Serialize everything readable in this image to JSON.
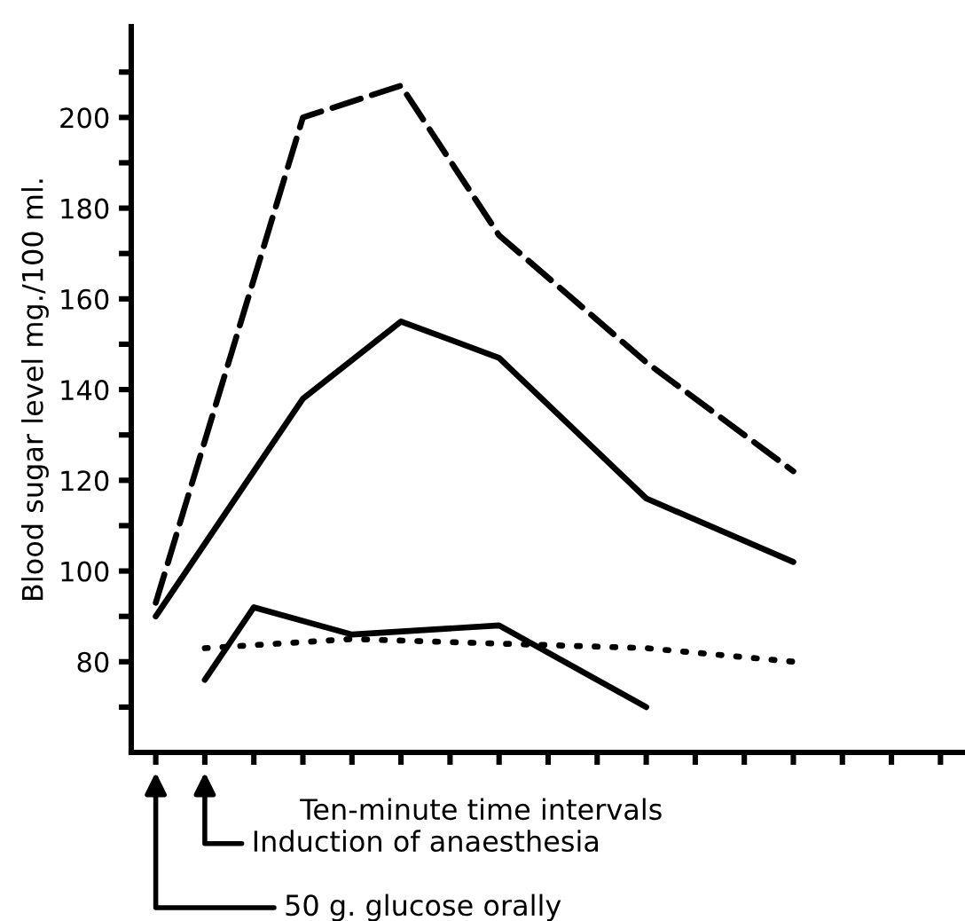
{
  "chart_data": {
    "type": "line",
    "xlabel": "Ten-minute time intervals",
    "ylabel": "Blood sugar level mg./100 ml.",
    "categories": [
      null,
      null,
      null,
      null,
      null,
      null,
      null,
      null,
      null,
      null,
      null,
      null,
      null,
      null,
      null,
      null,
      null
    ],
    "ylim": [
      60,
      220
    ],
    "yticks": [
      {
        "value": 70,
        "label": null
      },
      80,
      {
        "value": 90,
        "label": null
      },
      100,
      {
        "value": 110,
        "label": null
      },
      120,
      {
        "value": 130,
        "label": null
      },
      140,
      {
        "value": 150,
        "label": null
      },
      160,
      {
        "value": 170,
        "label": null
      },
      180,
      {
        "value": 190,
        "label": null
      },
      200,
      {
        "value": 210,
        "label": null
      }
    ],
    "grid": false,
    "legend": false,
    "marker": "none",
    "series": [
      {
        "color": "#000000",
        "line_style": "dashed",
        "values": [
          93,
          null,
          null,
          200,
          null,
          207,
          null,
          174,
          null,
          null,
          146,
          null,
          null,
          122,
          null,
          null,
          null
        ]
      },
      {
        "color": "#000000",
        "line_style": "solid",
        "values": [
          90,
          null,
          null,
          138,
          null,
          155,
          null,
          147,
          null,
          null,
          116,
          null,
          null,
          102,
          null,
          null,
          null
        ]
      },
      {
        "color": "#000000",
        "line_style": "solid",
        "values": [
          null,
          76,
          92,
          null,
          86,
          null,
          null,
          88,
          null,
          null,
          70,
          null,
          null,
          null,
          null,
          null,
          null
        ]
      },
      {
        "color": "#000000",
        "line_style": "dotted",
        "values": [
          null,
          83,
          null,
          null,
          85,
          null,
          null,
          84,
          null,
          null,
          83,
          null,
          null,
          80,
          null,
          null,
          null
        ]
      }
    ],
    "annotations": [
      "Induction of anaesthesia",
      "50 g. glucose orally"
    ]
  }
}
